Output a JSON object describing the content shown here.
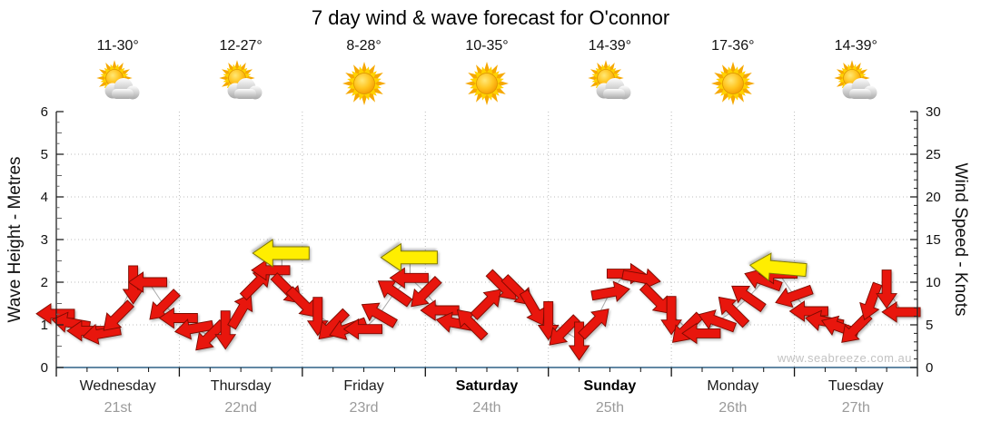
{
  "title": "7 day wind & wave forecast for O'connor",
  "watermark": "www.seabreeze.com.au",
  "days": [
    {
      "name": "Wednesday",
      "date": "21st",
      "temp": "11-30°",
      "icon": "partly-cloudy",
      "weekend": false
    },
    {
      "name": "Thursday",
      "date": "22nd",
      "temp": "12-27°",
      "icon": "partly-cloudy",
      "weekend": false
    },
    {
      "name": "Friday",
      "date": "23rd",
      "temp": "8-28°",
      "icon": "sunny",
      "weekend": false
    },
    {
      "name": "Saturday",
      "date": "24th",
      "temp": "10-35°",
      "icon": "sunny",
      "weekend": true
    },
    {
      "name": "Sunday",
      "date": "25th",
      "temp": "14-39°",
      "icon": "partly-cloudy",
      "weekend": true
    },
    {
      "name": "Monday",
      "date": "26th",
      "temp": "17-36°",
      "icon": "sunny",
      "weekend": false
    },
    {
      "name": "Tuesday",
      "date": "27th",
      "temp": "14-39°",
      "icon": "partly-cloudy",
      "weekend": false
    }
  ],
  "colors": {
    "arrow_red": "#e8120e",
    "arrow_red_outline": "#7c0c00",
    "gust_yellow": "#ffee00",
    "gust_outline": "#807700",
    "bottom_axis_blue": "#2e6186",
    "axis_black": "#222222",
    "grid_gray": "#bdbdbd",
    "series_line_gray": "#aaaaaa",
    "date_gray": "#9a9a9a",
    "watermark_gray": "#c2c2c2"
  },
  "chart_data": {
    "type": "line",
    "title": "7 day wind & wave forecast for O'connor",
    "legend": false,
    "grid": true,
    "left_axis": {
      "label": "Wave Height - Metres",
      "min": 0,
      "max": 6,
      "tick_step": 1,
      "minor_step": 0.25
    },
    "right_axis": {
      "label": "Wind Speed - Knots",
      "min": 0,
      "max": 30,
      "tick_step": 5,
      "minor_step": 1
    },
    "x_axis": {
      "hours_total": 168,
      "minor_tick_hours": 6,
      "categories": [
        "Wednesday 21st",
        "Thursday 22nd",
        "Friday 23rd",
        "Saturday 24th",
        "Sunday 25th",
        "Monday 26th",
        "Tuesday 27th"
      ]
    },
    "series": [
      {
        "name": "wind-speed-direction",
        "marker": "arrow",
        "units": "knots",
        "note": "points are [hour, knots, screen_direction_deg (0=E, 90=S, 180=W, 270=N)]",
        "points": [
          [
            0,
            6.3,
            180
          ],
          [
            3,
            5.2,
            190
          ],
          [
            6,
            4.3,
            180
          ],
          [
            9,
            4.0,
            170
          ],
          [
            12,
            6.0,
            135
          ],
          [
            15,
            9.8,
            90
          ],
          [
            18,
            10.0,
            180
          ],
          [
            21,
            7.3,
            135
          ],
          [
            24,
            5.8,
            180
          ],
          [
            27,
            4.6,
            170
          ],
          [
            30,
            3.7,
            135
          ],
          [
            33,
            4.5,
            90
          ],
          [
            36,
            6.6,
            300
          ],
          [
            39,
            9.8,
            315
          ],
          [
            42,
            11.4,
            180
          ],
          [
            45,
            9.2,
            45
          ],
          [
            48,
            7.6,
            45
          ],
          [
            51,
            6.1,
            90
          ],
          [
            54,
            5.0,
            135
          ],
          [
            57,
            4.6,
            160
          ],
          [
            60,
            4.5,
            180
          ],
          [
            63,
            6.2,
            210
          ],
          [
            66,
            8.8,
            215
          ],
          [
            69,
            10.5,
            180
          ],
          [
            72,
            8.8,
            135
          ],
          [
            75,
            6.7,
            180
          ],
          [
            78,
            5.2,
            190
          ],
          [
            81,
            5.1,
            225
          ],
          [
            84,
            7.5,
            315
          ],
          [
            87,
            9.6,
            45
          ],
          [
            90,
            9.0,
            45
          ],
          [
            93,
            7.0,
            60
          ],
          [
            96,
            5.6,
            90
          ],
          [
            99,
            4.3,
            135
          ],
          [
            102,
            3.2,
            90
          ],
          [
            105,
            5.2,
            315
          ],
          [
            108,
            8.8,
            350
          ],
          [
            111,
            11.0,
            0
          ],
          [
            114,
            10.5,
            10
          ],
          [
            117,
            8.0,
            45
          ],
          [
            120,
            6.2,
            90
          ],
          [
            123,
            4.6,
            135
          ],
          [
            126,
            4.0,
            180
          ],
          [
            129,
            5.4,
            200
          ],
          [
            132,
            6.6,
            225
          ],
          [
            135,
            8.2,
            215
          ],
          [
            138,
            10.2,
            200
          ],
          [
            141,
            11.0,
            180
          ],
          [
            144,
            8.4,
            160
          ],
          [
            147,
            6.6,
            180
          ],
          [
            150,
            5.4,
            190
          ],
          [
            153,
            4.7,
            200
          ],
          [
            156,
            4.6,
            135
          ],
          [
            159,
            7.8,
            110
          ],
          [
            162,
            9.3,
            90
          ],
          [
            165,
            6.5,
            180
          ]
        ]
      },
      {
        "name": "gusts",
        "marker": "arrow",
        "units": "knots",
        "points": [
          [
            44,
            13.4,
            180
          ],
          [
            69,
            12.9,
            180
          ],
          [
            141,
            11.7,
            185
          ]
        ]
      }
    ]
  }
}
